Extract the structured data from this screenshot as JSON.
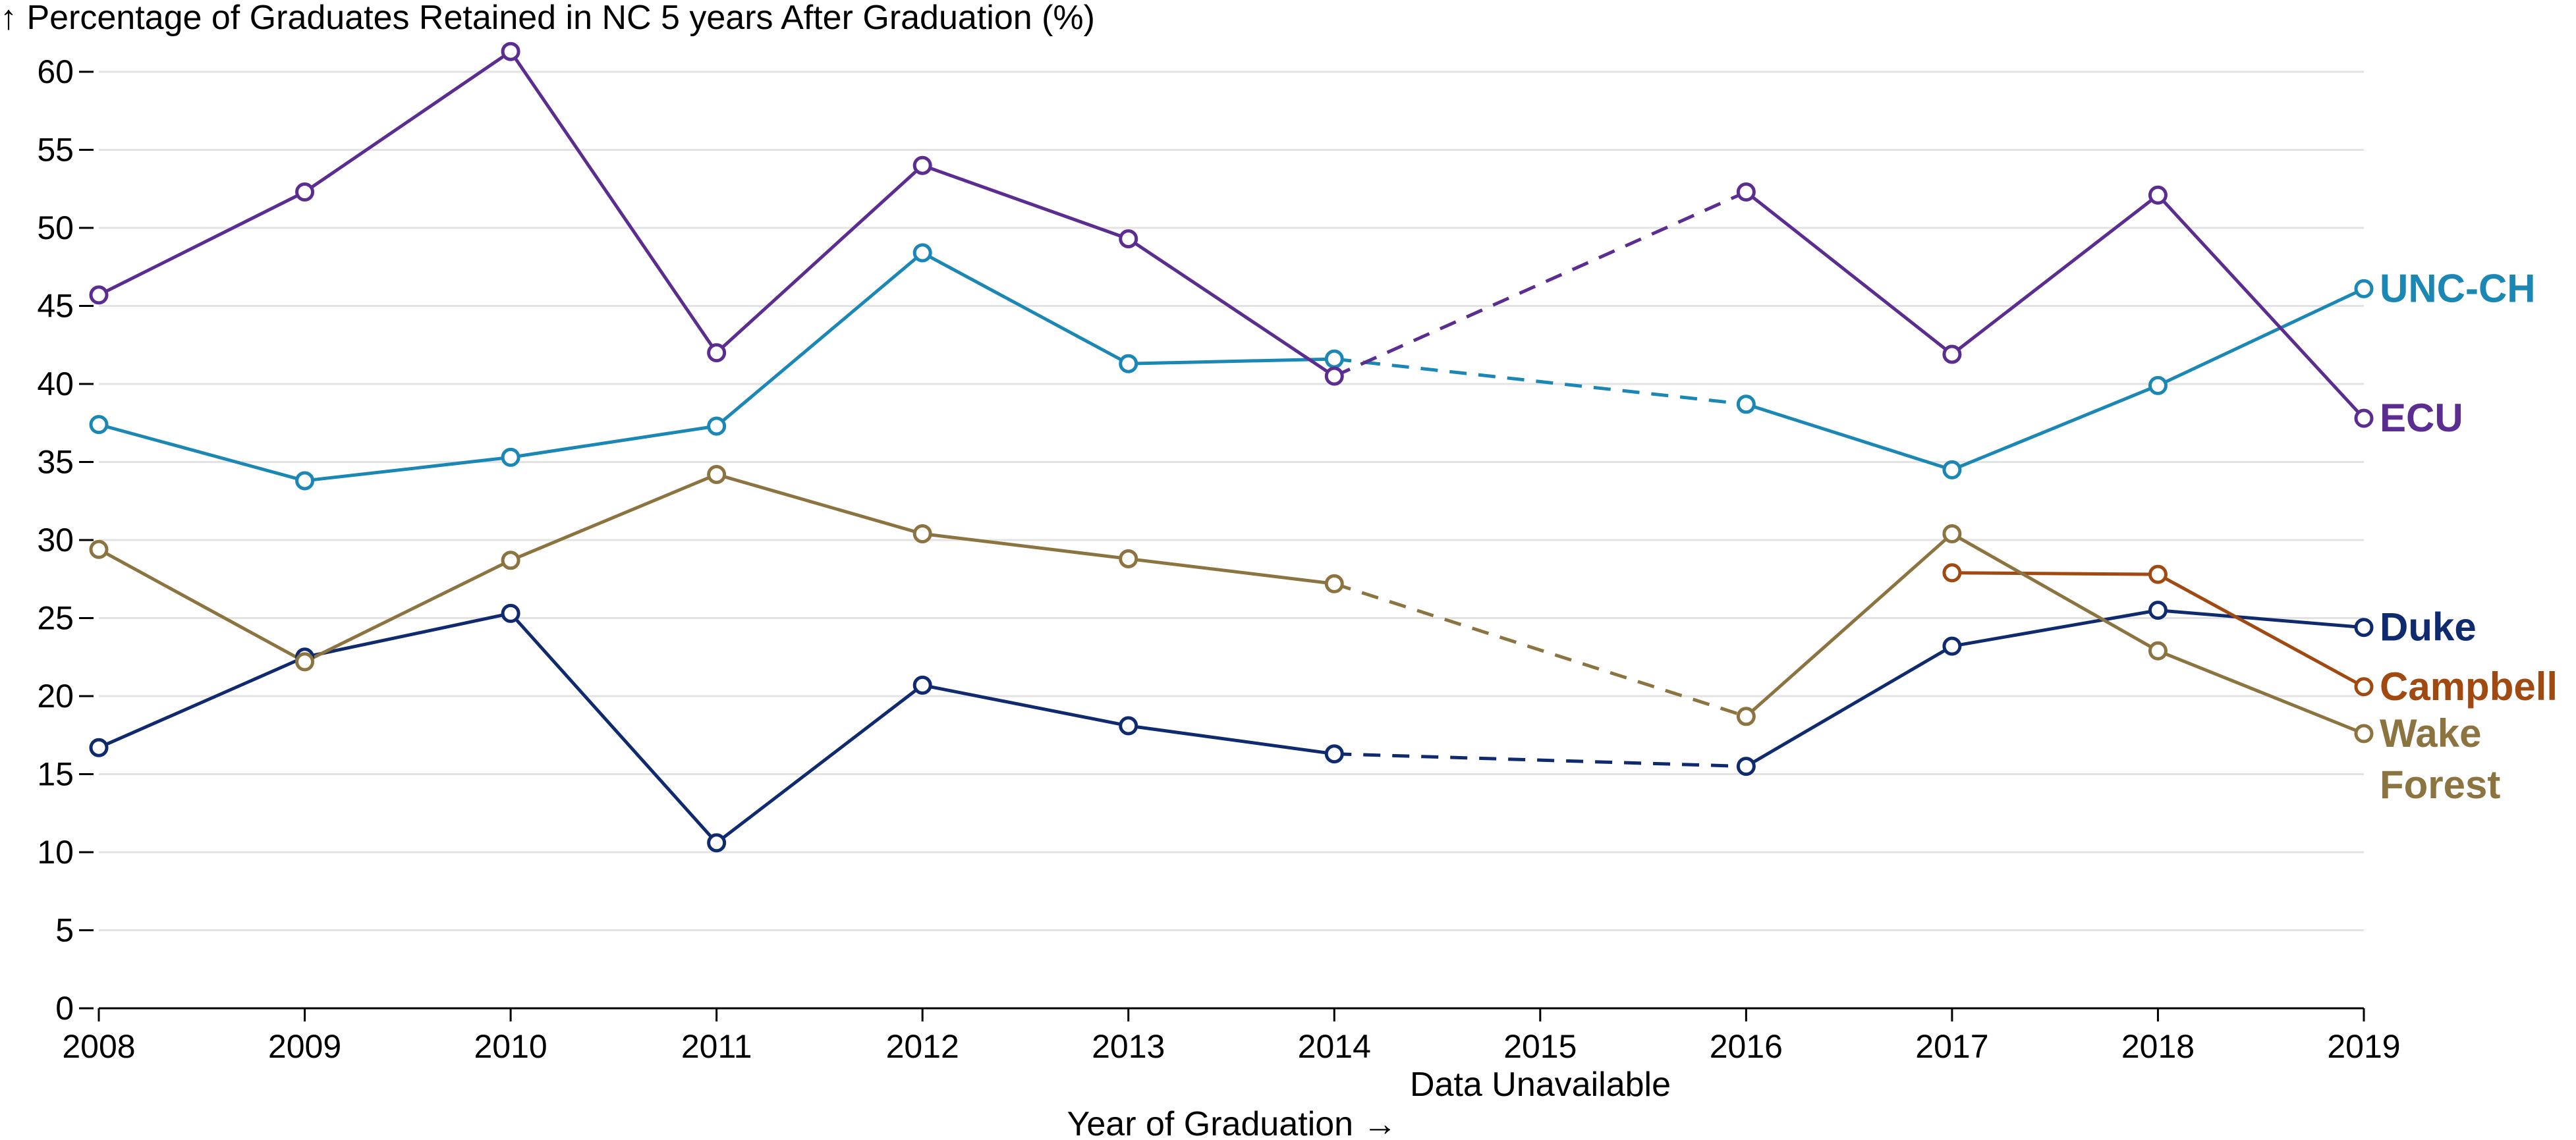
{
  "chart_data": {
    "type": "line",
    "title": "",
    "ylabel": "↑ Percentage of Graduates Retained in NC 5 years After Graduation (%)",
    "xlabel": "Year of Graduation →",
    "x_annotation": "Data Unavailable",
    "x_annotation_at": 2015,
    "x_ticks": [
      "2008",
      "2009",
      "2010",
      "2011",
      "2012",
      "2013",
      "2014",
      "2015",
      "2016",
      "2017",
      "2018",
      "2019"
    ],
    "y_ticks": [
      "0",
      "5",
      "10",
      "15",
      "20",
      "25",
      "30",
      "35",
      "40",
      "45",
      "50",
      "55",
      "60"
    ],
    "ylim": [
      0,
      60
    ],
    "xlim": [
      2008,
      2019
    ],
    "grid": "horizontal",
    "legend": "direct labels at line ends (right)",
    "gap_year": 2015,
    "series": [
      {
        "name": "UNC-CH",
        "label_lines": [
          "UNC-CH"
        ],
        "color": "#1a87b5",
        "points": [
          [
            2008,
            37.4
          ],
          [
            2009,
            33.8
          ],
          [
            2010,
            35.3
          ],
          [
            2011,
            37.3
          ],
          [
            2012,
            48.4
          ],
          [
            2013,
            41.3
          ],
          [
            2014,
            41.6
          ],
          [
            2016,
            38.7
          ],
          [
            2017,
            34.5
          ],
          [
            2018,
            39.9
          ],
          [
            2019,
            46.1
          ]
        ]
      },
      {
        "name": "ECU",
        "label_lines": [
          "ECU"
        ],
        "color": "#5b2d91",
        "points": [
          [
            2008,
            45.7
          ],
          [
            2009,
            52.3
          ],
          [
            2010,
            61.3
          ],
          [
            2011,
            42.0
          ],
          [
            2012,
            54.0
          ],
          [
            2013,
            49.3
          ],
          [
            2014,
            40.5
          ],
          [
            2016,
            52.3
          ],
          [
            2017,
            41.9
          ],
          [
            2018,
            52.1
          ],
          [
            2019,
            37.8
          ]
        ]
      },
      {
        "name": "Duke",
        "label_lines": [
          "Duke"
        ],
        "color": "#0f2a6e",
        "points": [
          [
            2008,
            16.7
          ],
          [
            2009,
            22.5
          ],
          [
            2010,
            25.3
          ],
          [
            2011,
            10.6
          ],
          [
            2012,
            20.7
          ],
          [
            2013,
            18.1
          ],
          [
            2014,
            16.3
          ],
          [
            2016,
            15.5
          ],
          [
            2017,
            23.2
          ],
          [
            2018,
            25.5
          ],
          [
            2019,
            24.4
          ]
        ]
      },
      {
        "name": "Campbell",
        "label_lines": [
          "Campbell"
        ],
        "color": "#a04a12",
        "points": [
          [
            2017,
            27.9
          ],
          [
            2018,
            27.8
          ],
          [
            2019,
            20.6
          ]
        ]
      },
      {
        "name": "Wake Forest",
        "label_lines": [
          "Wake",
          "Forest"
        ],
        "color": "#8c7440",
        "points": [
          [
            2008,
            29.4
          ],
          [
            2009,
            22.2
          ],
          [
            2010,
            28.7
          ],
          [
            2011,
            34.2
          ],
          [
            2012,
            30.4
          ],
          [
            2013,
            28.8
          ],
          [
            2014,
            27.2
          ],
          [
            2016,
            18.7
          ],
          [
            2017,
            30.4
          ],
          [
            2018,
            22.9
          ],
          [
            2019,
            17.6
          ]
        ]
      }
    ]
  }
}
